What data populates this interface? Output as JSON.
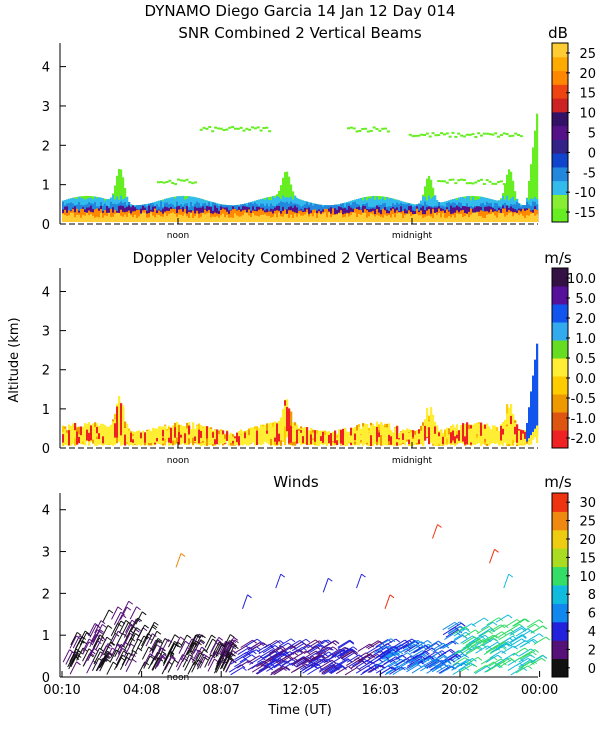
{
  "header": {
    "line1": "DYNAMO Diego Garcia  14 Jan 12 Day 014"
  },
  "colors": {
    "snr": [
      "#66ee22",
      "#88ee33",
      "#33bbee",
      "#2288dd",
      "#1144cc",
      "#332288",
      "#551188",
      "#331166",
      "#cc2222",
      "#ee4411",
      "#ff8800",
      "#ffaa00",
      "#ffcc33"
    ],
    "dop": [
      "#ee2222",
      "#dd5511",
      "#ee9900",
      "#ffcc00",
      "#ffee33",
      "#66dd22",
      "#33aaee",
      "#1155ee",
      "#551199",
      "#331144"
    ],
    "wind": [
      "#111111",
      "#551177",
      "#2222dd",
      "#1188ee",
      "#11bbdd",
      "#33dd66",
      "#aadd22",
      "#eecc11",
      "#ee8811",
      "#ee3311"
    ]
  },
  "chart_data": [
    {
      "type": "heatmap",
      "title": "SNR Combined 2 Vertical Beams",
      "ylabel": "",
      "ylim": [
        0,
        4.6
      ],
      "yticks": [
        "0",
        "1",
        "2",
        "3",
        "4"
      ],
      "xmarks": [
        "noon",
        "midnight"
      ],
      "colorbar_unit": "dB",
      "colorbar_labels": [
        "25",
        "20",
        "15",
        "10",
        "5",
        "0",
        "-5",
        "-10",
        "-15"
      ]
    },
    {
      "type": "heatmap",
      "title": "Doppler Velocity Combined 2 Vertical Beams",
      "ylabel": "Altitude (km)",
      "ylim": [
        0,
        4.6
      ],
      "yticks": [
        "0",
        "1",
        "2",
        "3",
        "4"
      ],
      "xmarks": [
        "noon",
        "midnight"
      ],
      "colorbar_unit": "m/s",
      "colorbar_labels": [
        "10.0",
        "5.0",
        "2.0",
        "1.0",
        "0.5",
        "0.0",
        "-0.5",
        "-1.0",
        "-2.0"
      ]
    },
    {
      "type": "scatter",
      "title": "Winds",
      "xlabel": "Time (UT)",
      "ylim": [
        0,
        4.4
      ],
      "yticks": [
        "0",
        "1",
        "2",
        "3",
        "4"
      ],
      "xmarks": [
        "noon"
      ],
      "xticks": [
        "00:10",
        "04:08",
        "08:07",
        "12:05",
        "16:03",
        "20:02",
        "00:00"
      ],
      "colorbar_unit": "m/s",
      "colorbar_labels": [
        "30",
        "25",
        "20",
        "15",
        "10",
        "8",
        "6",
        "4",
        "2",
        "0"
      ]
    }
  ]
}
